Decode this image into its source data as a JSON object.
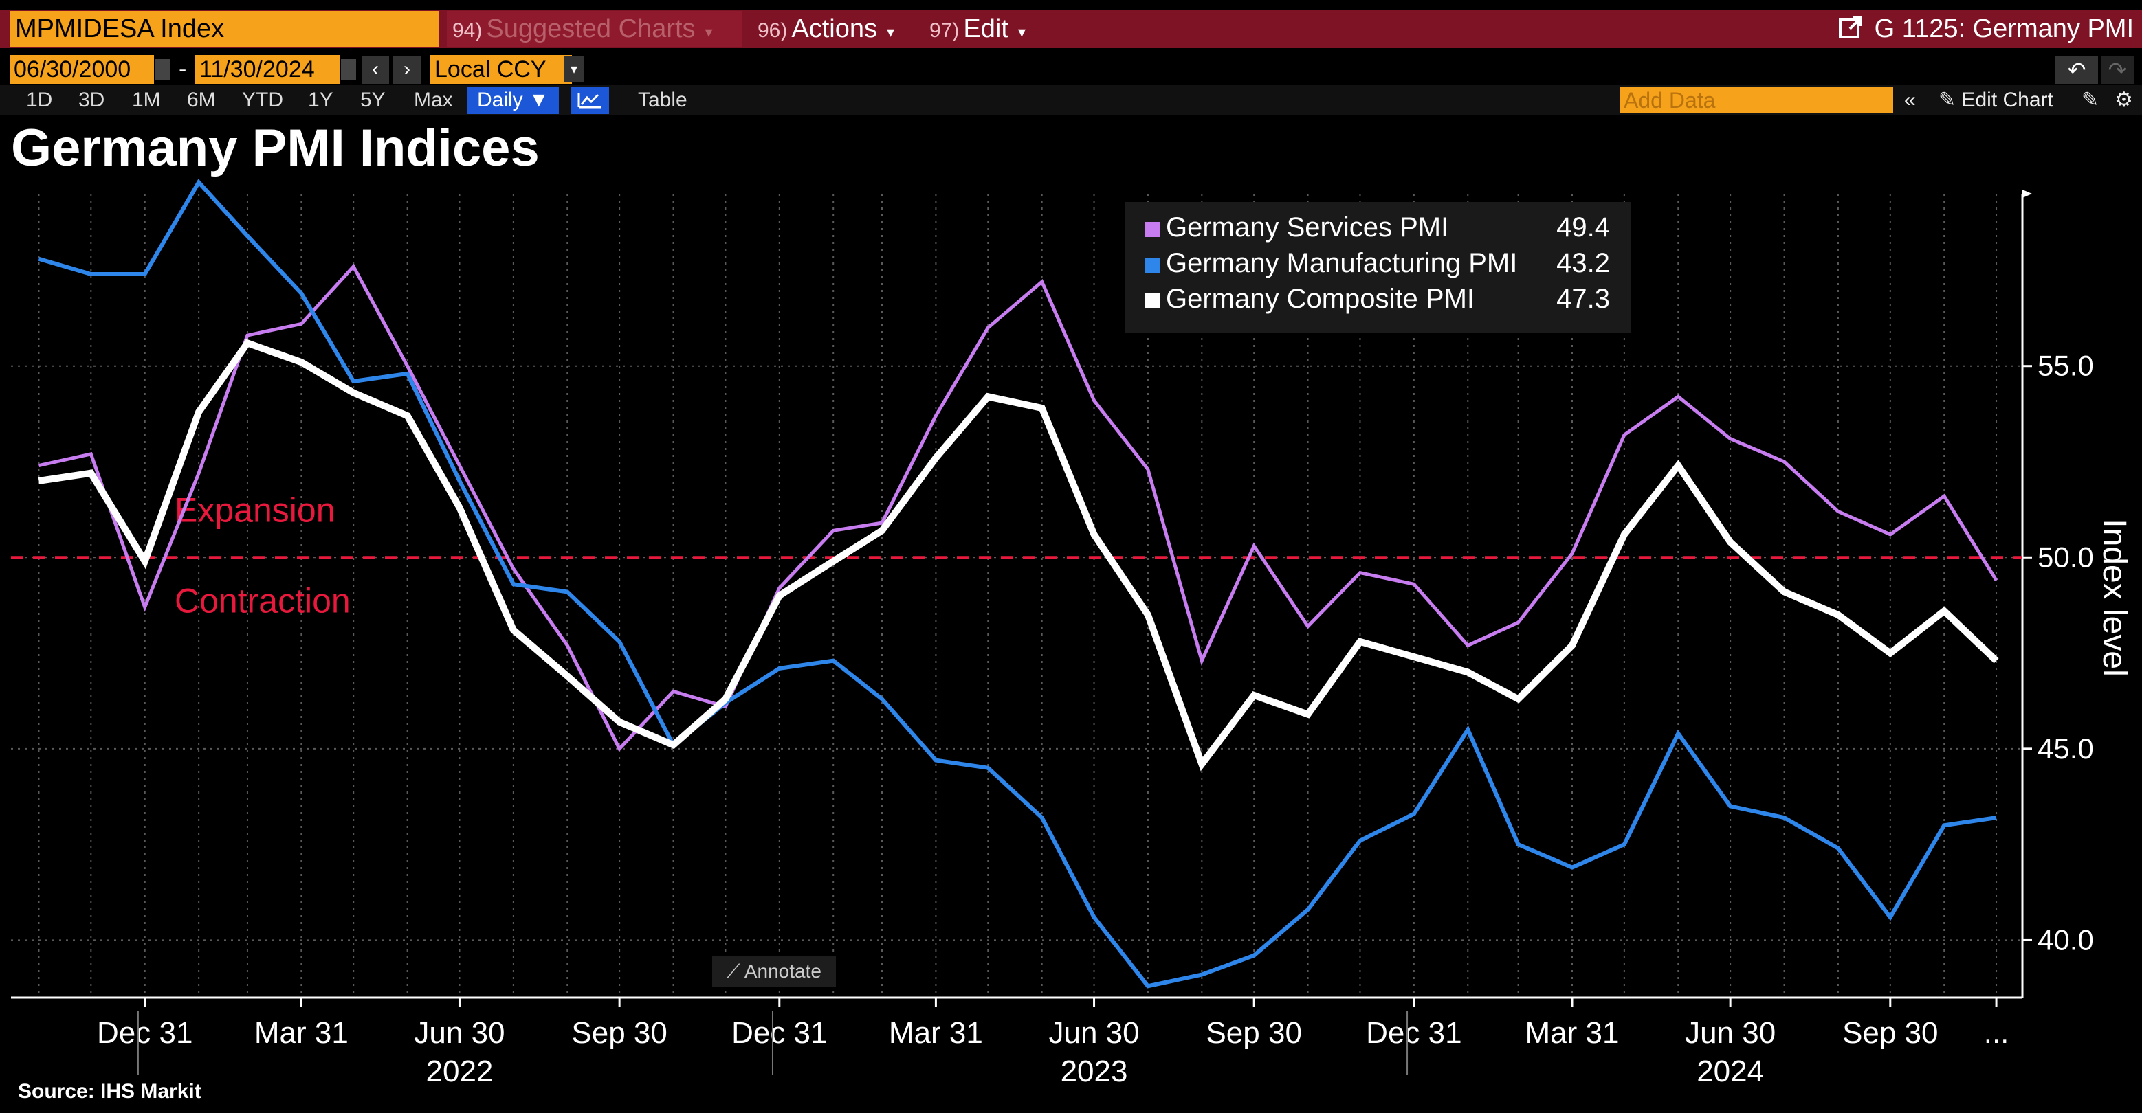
{
  "header": {
    "ticker": "MPMIDESA Index",
    "suggested_num": "94)",
    "suggested_label": "Suggested Charts",
    "actions_num": "96)",
    "actions_label": "Actions",
    "edit_num": "97)",
    "edit_label": "Edit",
    "graph_title": "G 1125: Germany PMI"
  },
  "controls": {
    "start_date": "06/30/2000",
    "end_date": "11/30/2024",
    "date_separator": "-",
    "currency": "Local CCY",
    "ranges": [
      "1D",
      "3D",
      "1M",
      "6M",
      "YTD",
      "1Y",
      "5Y",
      "Max"
    ],
    "frequency": "Daily ▼",
    "table_label": "Table",
    "add_data_placeholder": "Add Data",
    "edit_chart_label": "Edit Chart"
  },
  "annotate_label": "Annotate",
  "source": "Source: IHS Markit",
  "colors": {
    "services": "#c77df0",
    "manufacturing": "#2f86ea",
    "composite": "#ffffff",
    "threshold": "#e8193c",
    "header_bar": "#7d1324",
    "ticker_bg": "#f7a21b"
  },
  "chart_data": {
    "type": "line",
    "title": "Germany PMI Indices",
    "ylabel": "Index level",
    "ylim": [
      38.5,
      59.5
    ],
    "yticks": [
      40.0,
      45.0,
      50.0,
      55.0
    ],
    "ytick_labels": [
      "40.0",
      "45.0",
      "50.0",
      "55.0"
    ],
    "x_tick_labels": [
      "Dec 31",
      "Mar 31",
      "Jun 30",
      "Sep 30",
      "Dec 31",
      "Mar 31",
      "Jun 30",
      "Sep 30",
      "Dec 31",
      "Mar 31",
      "Jun 30",
      "Sep 30",
      "..."
    ],
    "x_tick_dates": [
      "2021-12-31",
      "2022-03-31",
      "2022-06-30",
      "2022-09-30",
      "2022-12-31",
      "2023-03-31",
      "2023-06-30",
      "2023-09-30",
      "2023-12-31",
      "2024-03-31",
      "2024-06-30",
      "2024-09-30",
      "2024-11-30"
    ],
    "year_labels": [
      {
        "label": "2022",
        "date": "2022-06-30"
      },
      {
        "label": "2023",
        "date": "2023-06-30"
      },
      {
        "label": "2024",
        "date": "2024-06-30"
      }
    ],
    "x": [
      "2021-10-31",
      "2021-11-30",
      "2021-12-31",
      "2022-01-31",
      "2022-02-28",
      "2022-03-31",
      "2022-04-30",
      "2022-05-31",
      "2022-06-30",
      "2022-07-31",
      "2022-08-31",
      "2022-09-30",
      "2022-10-31",
      "2022-11-30",
      "2022-12-31",
      "2023-01-31",
      "2023-02-28",
      "2023-03-31",
      "2023-04-30",
      "2023-05-31",
      "2023-06-30",
      "2023-07-31",
      "2023-08-31",
      "2023-09-30",
      "2023-10-31",
      "2023-11-30",
      "2023-12-31",
      "2024-01-31",
      "2024-02-29",
      "2024-03-31",
      "2024-04-30",
      "2024-05-31",
      "2024-06-30",
      "2024-07-31",
      "2024-08-31",
      "2024-09-30",
      "2024-10-31",
      "2024-11-30"
    ],
    "series": [
      {
        "name": "Germany Services PMI",
        "last": "49.4",
        "values": [
          52.4,
          52.7,
          48.7,
          52.2,
          55.8,
          56.1,
          57.6,
          55.0,
          52.4,
          49.7,
          47.7,
          45.0,
          46.5,
          46.1,
          49.2,
          50.7,
          50.9,
          53.7,
          56.0,
          57.2,
          54.1,
          52.3,
          47.3,
          50.3,
          48.2,
          49.6,
          49.3,
          47.7,
          48.3,
          50.1,
          53.2,
          54.2,
          53.1,
          52.5,
          51.2,
          50.6,
          51.6,
          49.4
        ]
      },
      {
        "name": "Germany Manufacturing PMI",
        "last": "43.2",
        "values": [
          57.8,
          57.4,
          57.4,
          59.8,
          58.4,
          56.9,
          54.6,
          54.8,
          52.0,
          49.3,
          49.1,
          47.8,
          45.1,
          46.2,
          47.1,
          47.3,
          46.3,
          44.7,
          44.5,
          43.2,
          40.6,
          38.8,
          39.1,
          39.6,
          40.8,
          42.6,
          43.3,
          45.5,
          42.5,
          41.9,
          42.5,
          45.4,
          43.5,
          43.2,
          42.4,
          40.6,
          43.0,
          43.2
        ]
      },
      {
        "name": "Germany Composite PMI",
        "last": "47.3",
        "values": [
          52.0,
          52.2,
          49.9,
          53.8,
          55.6,
          55.1,
          54.3,
          53.7,
          51.3,
          48.1,
          46.9,
          45.7,
          45.1,
          46.3,
          49.0,
          49.9,
          50.7,
          52.6,
          54.2,
          53.9,
          50.6,
          48.5,
          44.6,
          46.4,
          45.9,
          47.8,
          47.4,
          47.0,
          46.3,
          47.7,
          50.6,
          52.4,
          50.4,
          49.1,
          48.5,
          47.5,
          48.6,
          47.3
        ]
      }
    ],
    "threshold": {
      "value": 50.0,
      "above_label": "Expansion",
      "below_label": "Contraction"
    },
    "grid": true,
    "legend": "top-center"
  }
}
